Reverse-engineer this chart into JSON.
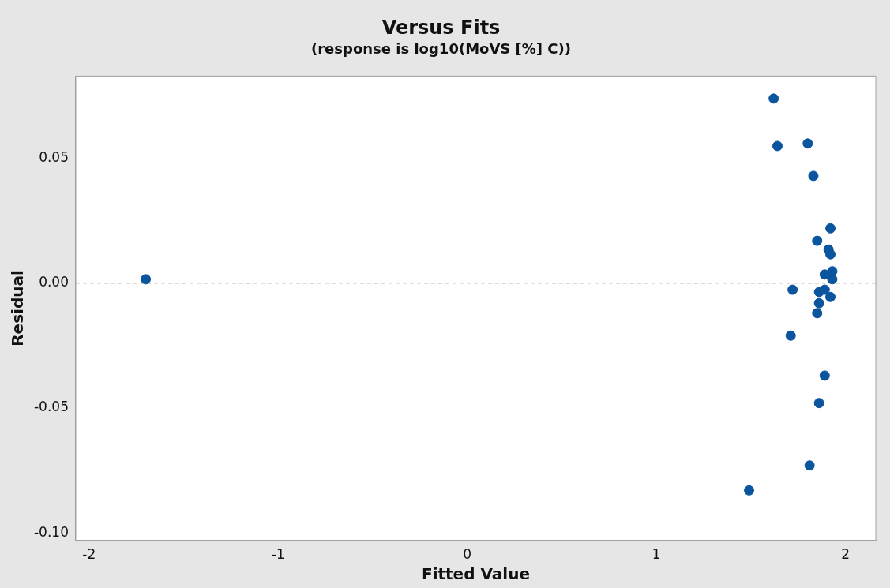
{
  "chart_data": {
    "type": "scatter",
    "title": "Versus Fits",
    "subtitle": "(response is log10(MoVS [%] C))",
    "xlabel": "Fitted Value",
    "ylabel": "Residual",
    "x": [
      -1.7,
      1.62,
      1.64,
      1.8,
      1.83,
      1.92,
      1.85,
      1.91,
      1.92,
      1.72,
      1.85,
      1.86,
      1.71,
      1.89,
      1.86,
      1.81,
      1.49,
      1.89,
      1.93,
      1.86,
      1.92,
      1.89,
      1.93
    ],
    "values": [
      0.0016,
      0.074,
      0.055,
      0.056,
      0.043,
      0.022,
      0.017,
      0.0135,
      0.0116,
      -0.0026,
      -0.012,
      -0.008,
      -0.021,
      -0.037,
      -0.048,
      -0.073,
      -0.083,
      0.0035,
      0.0048,
      -0.0035,
      -0.0055,
      -0.0026,
      0.0016
    ],
    "color": "#0b559f",
    "marker": "circle",
    "xlim": [
      -2.07,
      2.16
    ],
    "xticks": [
      -2,
      -1,
      0,
      1,
      2
    ],
    "ylim": [
      -0.103,
      0.083
    ],
    "yticks": [
      {
        "value": -0.1,
        "label": "-0.10"
      },
      {
        "value": -0.05,
        "label": "-0.05"
      },
      {
        "value": 0,
        "label": "0.00"
      },
      {
        "value": 0.05,
        "label": "0.05"
      }
    ],
    "ref_lines": [
      {
        "axis": "y",
        "value": 0,
        "color": "#a6a6a6",
        "line_style": "dashed"
      }
    ],
    "grid": false,
    "legend": false
  }
}
